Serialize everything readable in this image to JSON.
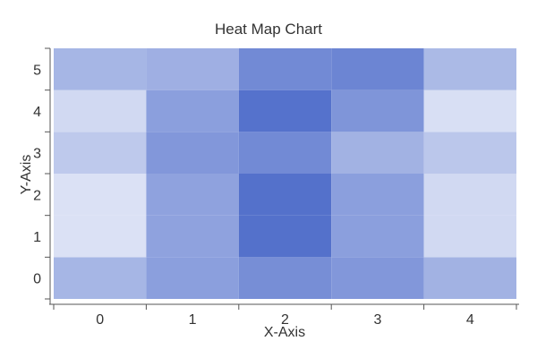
{
  "chart_data": {
    "type": "heatmap",
    "title": "Heat Map Chart",
    "xlabel": "X-Axis",
    "ylabel": "Y-Axis",
    "x_categories": [
      "0",
      "1",
      "2",
      "3",
      "4"
    ],
    "y_categories": [
      "0",
      "1",
      "2",
      "3",
      "4",
      "5"
    ],
    "z": [
      [
        0.45,
        0.62,
        0.75,
        0.68,
        0.48
      ],
      [
        0.12,
        0.6,
        0.97,
        0.62,
        0.18
      ],
      [
        0.12,
        0.6,
        0.97,
        0.62,
        0.18
      ],
      [
        0.3,
        0.68,
        0.78,
        0.48,
        0.32
      ],
      [
        0.18,
        0.62,
        0.96,
        0.7,
        0.14
      ],
      [
        0.45,
        0.5,
        0.78,
        0.82,
        0.42
      ]
    ],
    "color_low": "#eef1fb",
    "color_high": "#4f6dca",
    "grid": false,
    "legend": "none"
  }
}
